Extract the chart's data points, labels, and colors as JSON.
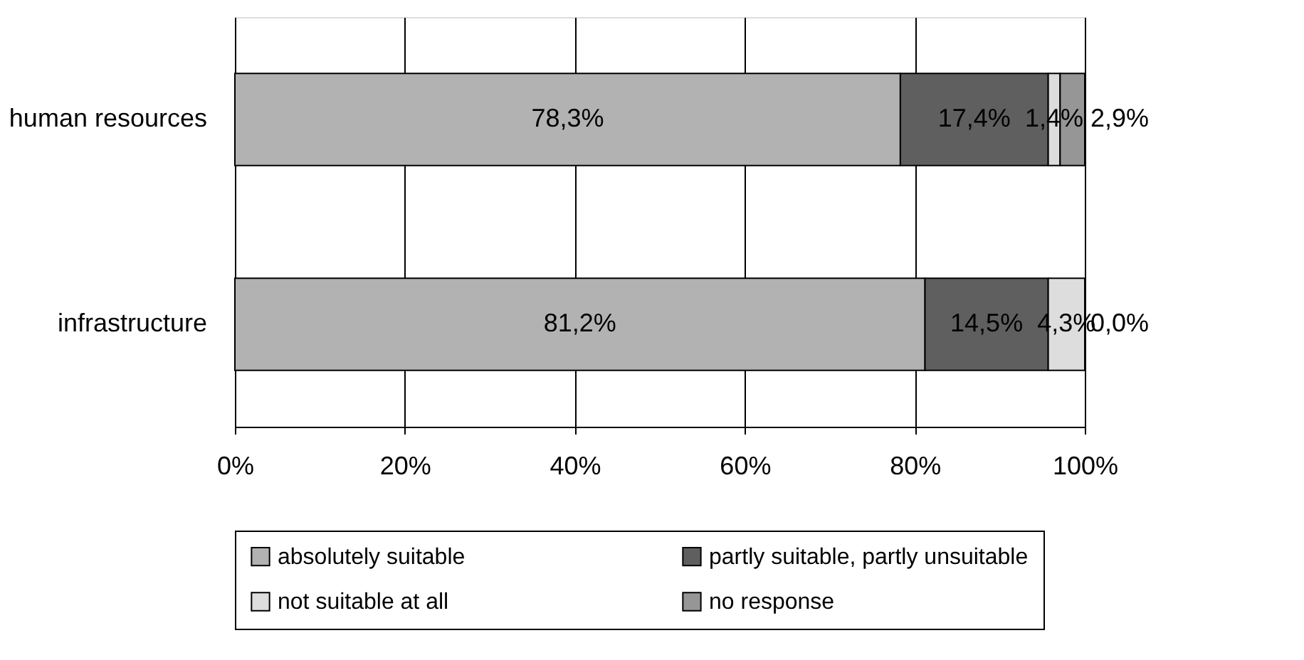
{
  "chart_data": {
    "type": "bar",
    "orientation": "horizontal",
    "stacked": true,
    "categories": [
      "human resources",
      "infrastructure"
    ],
    "series": [
      {
        "name": "absolutely suitable",
        "color": "#b2b2b2",
        "values": [
          78.3,
          81.2
        ],
        "value_labels": [
          "78,3%",
          "81,2%"
        ]
      },
      {
        "name": "partly suitable, partly unsuitable",
        "color": "#5f5f5f",
        "values": [
          17.4,
          14.5
        ],
        "value_labels": [
          "17,4%",
          "14,5%"
        ]
      },
      {
        "name": "not suitable at all",
        "color": "#dddddd",
        "values": [
          1.4,
          4.3
        ],
        "value_labels": [
          "1,4%",
          "4,3%"
        ]
      },
      {
        "name": "no response",
        "color": "#969696",
        "values": [
          2.9,
          0.0
        ],
        "value_labels": [
          "2,9%",
          "0,0%"
        ]
      }
    ],
    "xlim": [
      0,
      100
    ],
    "xticks": [
      {
        "value": 0,
        "label": "0%"
      },
      {
        "value": 20,
        "label": "20%"
      },
      {
        "value": 40,
        "label": "40%"
      },
      {
        "value": 60,
        "label": "60%"
      },
      {
        "value": 80,
        "label": "80%"
      },
      {
        "value": 100,
        "label": "100%"
      }
    ],
    "grid": "x",
    "legend": "bottom"
  }
}
